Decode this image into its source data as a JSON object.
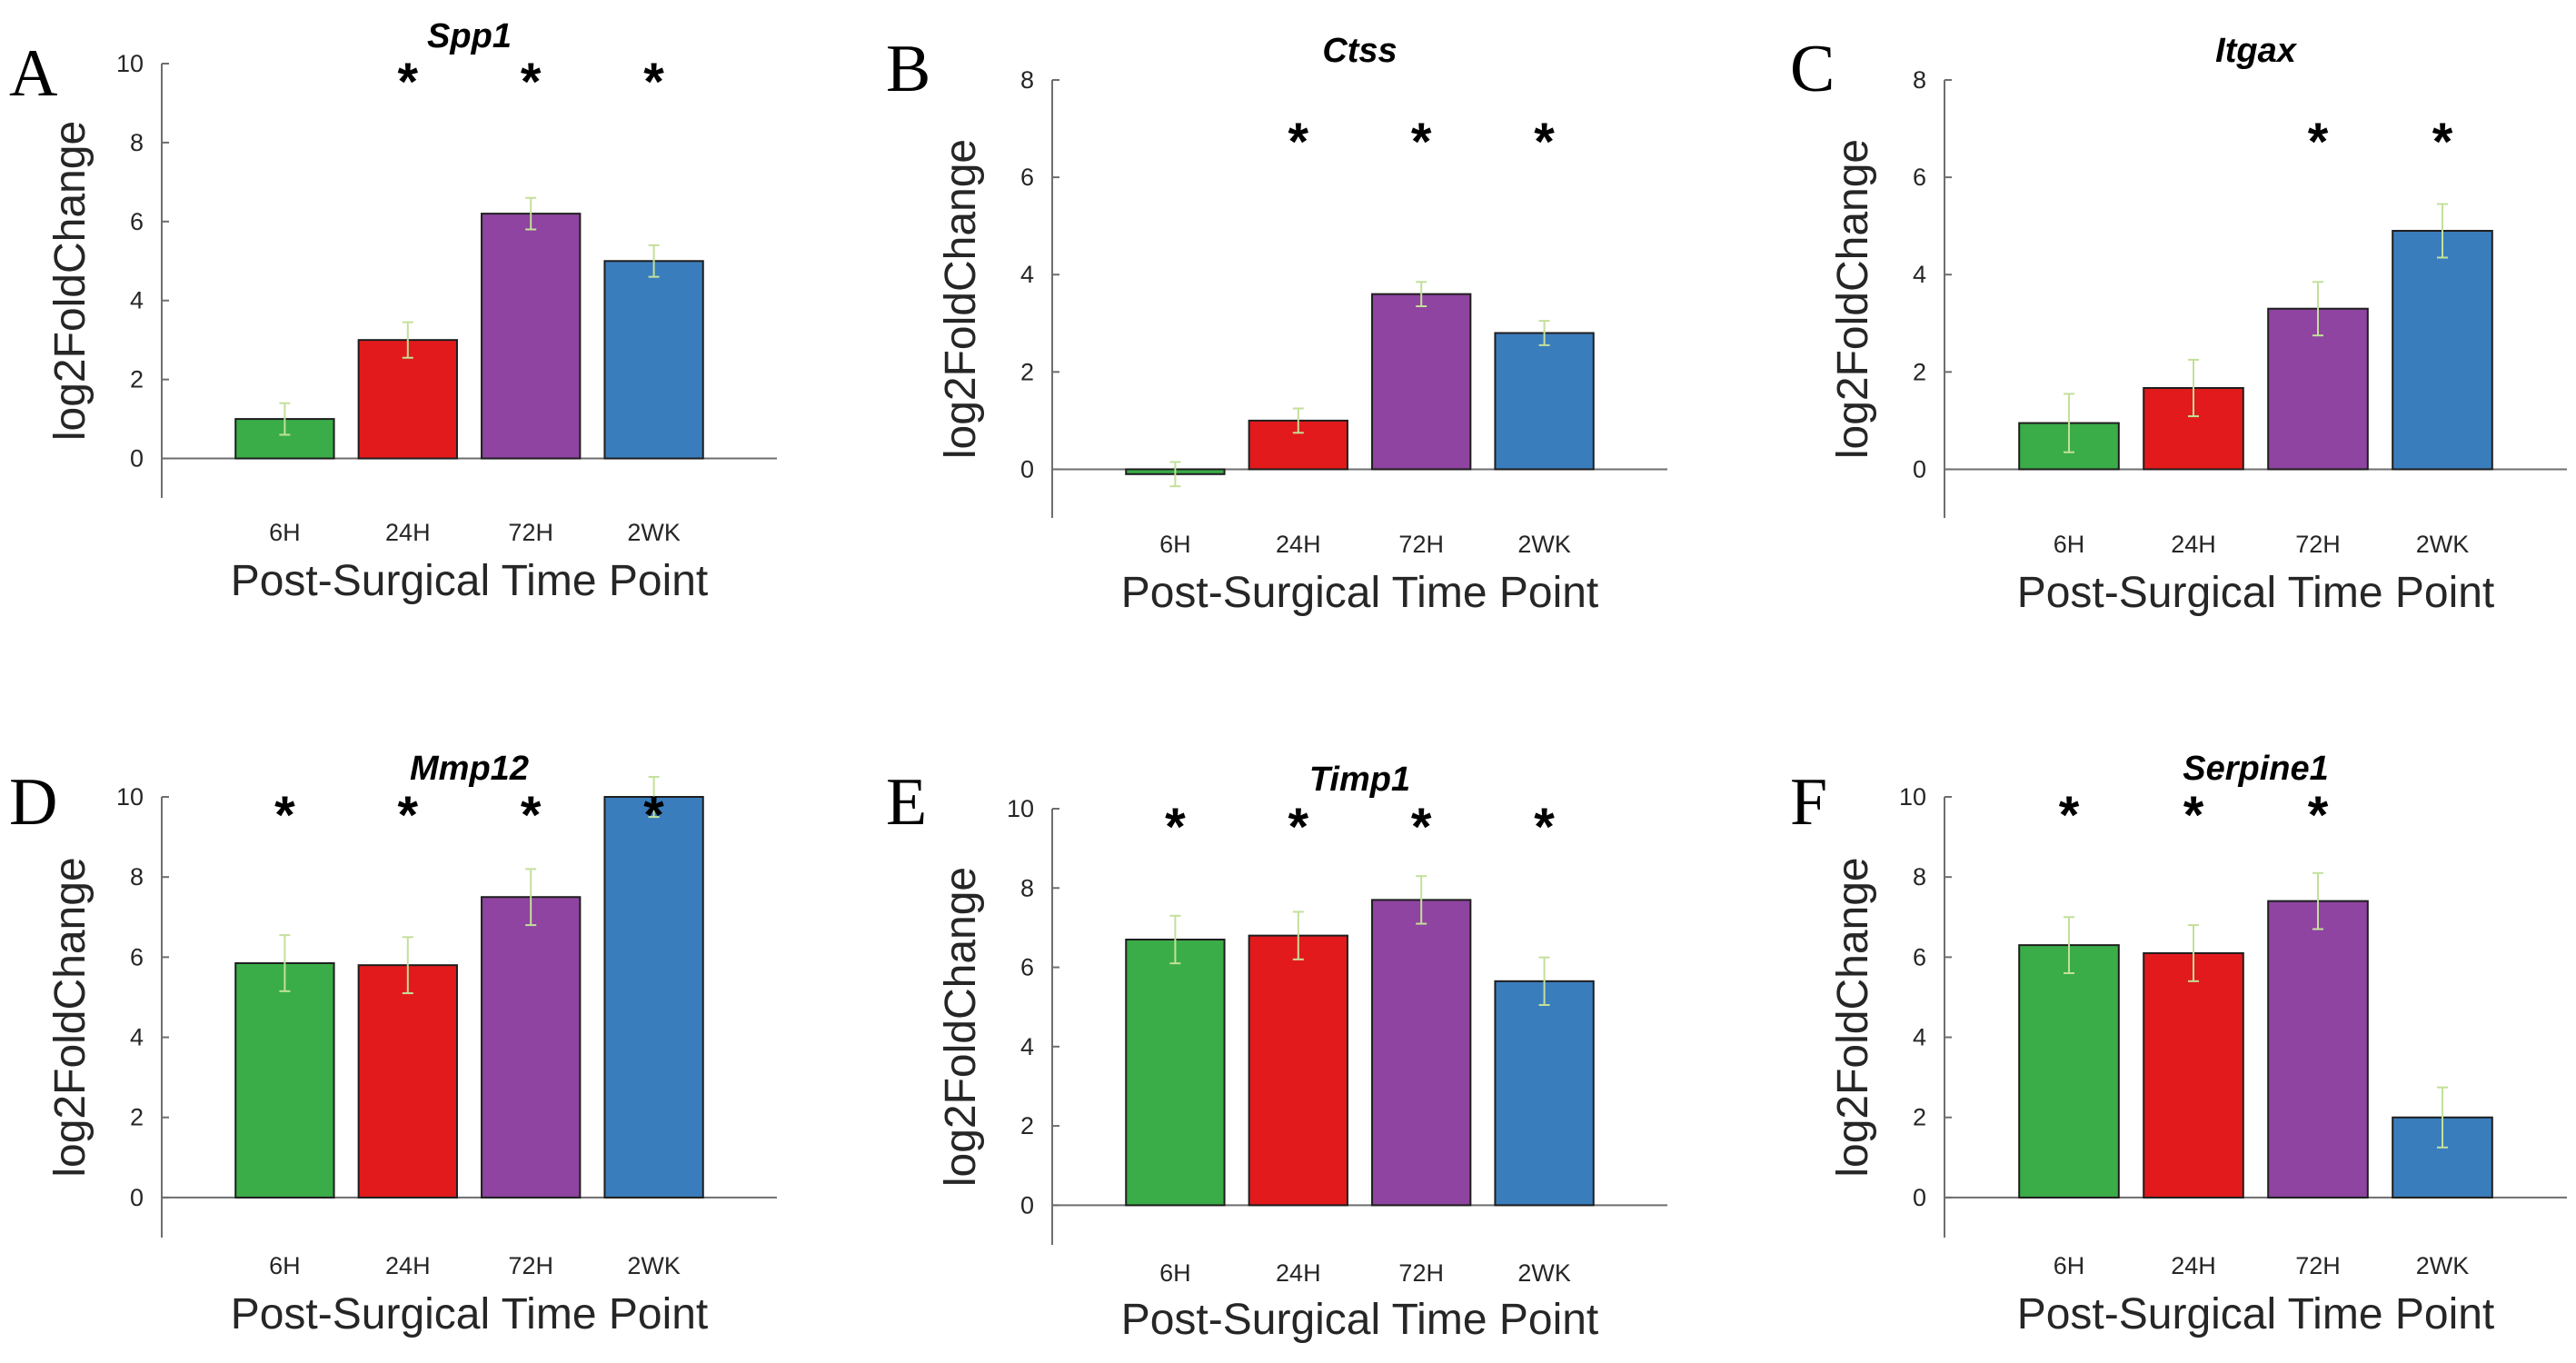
{
  "colors": {
    "green": "#3aad48",
    "red": "#e31a1c",
    "purple": "#8e44a0",
    "blue": "#3a7dbc",
    "errorbar": "#c3e09a"
  },
  "chart_data": [
    {
      "panel": "A",
      "type": "bar",
      "title": "Spp1",
      "xlabel": "Post-Surgical Time Point",
      "ylabel": "log2FoldChange",
      "categories": [
        "6H",
        "24H",
        "72H",
        "2WK"
      ],
      "values": [
        1.0,
        3.0,
        6.2,
        5.0
      ],
      "errors": [
        0.4,
        0.45,
        0.4,
        0.4
      ],
      "significant": [
        false,
        true,
        true,
        true
      ],
      "significance_marker": "*",
      "ylim": [
        -1,
        10
      ],
      "yticks": [
        0,
        2,
        4,
        6,
        8,
        10
      ]
    },
    {
      "panel": "B",
      "type": "bar",
      "title": "Ctss",
      "xlabel": "Post-Surgical Time Point",
      "ylabel": "log2FoldChange",
      "categories": [
        "6H",
        "24H",
        "72H",
        "2WK"
      ],
      "values": [
        -0.1,
        1.0,
        3.6,
        2.8
      ],
      "errors": [
        0.25,
        0.25,
        0.25,
        0.25
      ],
      "significant": [
        false,
        true,
        true,
        true
      ],
      "significance_marker": "*",
      "ylim": [
        -1,
        8
      ],
      "yticks": [
        0,
        2,
        4,
        6,
        8
      ]
    },
    {
      "panel": "C",
      "type": "bar",
      "title": "Itgax",
      "xlabel": "Post-Surgical Time Point",
      "ylabel": "log2FoldChange",
      "categories": [
        "6H",
        "24H",
        "72H",
        "2WK"
      ],
      "values": [
        0.95,
        1.67,
        3.3,
        4.9
      ],
      "errors": [
        0.6,
        0.58,
        0.55,
        0.55
      ],
      "significant": [
        false,
        false,
        true,
        true
      ],
      "significance_marker": "*",
      "ylim": [
        -1,
        8
      ],
      "yticks": [
        0,
        2,
        4,
        6,
        8
      ]
    },
    {
      "panel": "D",
      "type": "bar",
      "title": "Mmp12",
      "xlabel": "Post-Surgical Time Point",
      "ylabel": "log2FoldChange",
      "categories": [
        "6H",
        "24H",
        "72H",
        "2WK"
      ],
      "values": [
        5.85,
        5.8,
        7.5,
        10.0
      ],
      "errors": [
        0.7,
        0.7,
        0.7,
        0.5
      ],
      "significant": [
        true,
        true,
        true,
        true
      ],
      "significance_marker": "*",
      "ylim": [
        -1,
        10
      ],
      "yticks": [
        0,
        2,
        4,
        6,
        8,
        10
      ]
    },
    {
      "panel": "E",
      "type": "bar",
      "title": "Timp1",
      "xlabel": "Post-Surgical Time Point",
      "ylabel": "log2FoldChange",
      "categories": [
        "6H",
        "24H",
        "72H",
        "2WK"
      ],
      "values": [
        6.7,
        6.8,
        7.7,
        5.65
      ],
      "errors": [
        0.6,
        0.6,
        0.6,
        0.6
      ],
      "significant": [
        true,
        true,
        true,
        true
      ],
      "significance_marker": "*",
      "ylim": [
        -1,
        10
      ],
      "yticks": [
        0,
        2,
        4,
        6,
        8,
        10
      ]
    },
    {
      "panel": "F",
      "type": "bar",
      "title": "Serpine1",
      "xlabel": "Post-Surgical Time Point",
      "ylabel": "log2FoldChange",
      "categories": [
        "6H",
        "24H",
        "72H",
        "2WK"
      ],
      "values": [
        6.3,
        6.1,
        7.4,
        2.0
      ],
      "errors": [
        0.7,
        0.7,
        0.7,
        0.75
      ],
      "significant": [
        true,
        true,
        true,
        false
      ],
      "significance_marker": "*",
      "ylim": [
        -1,
        10
      ],
      "yticks": [
        0,
        2,
        4,
        6,
        8,
        10
      ]
    }
  ]
}
